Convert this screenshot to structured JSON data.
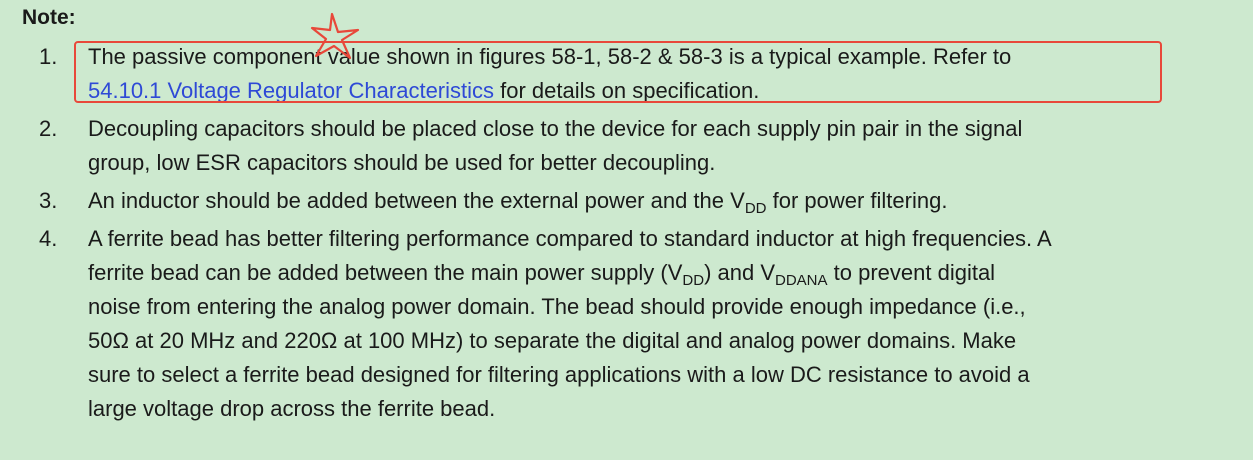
{
  "note": {
    "title": "Note:",
    "items": [
      {
        "number": "1.",
        "lines": [
          {
            "text": "The passive component value shown in figures 58-1, 58-2 & 58-3 is a typical example. Refer to"
          },
          {
            "link": "54.10.1 Voltage Regulator Characteristics",
            "text": " for details on specification."
          }
        ]
      },
      {
        "number": "2.",
        "lines": [
          {
            "text": "Decoupling capacitors should be placed close to the device for each supply pin pair in the signal"
          },
          {
            "text": "group, low ESR capacitors should be used for better decoupling."
          }
        ]
      },
      {
        "number": "3.",
        "lines": [
          {
            "text": "An inductor should be added between the external power and the V",
            "sub": "DD",
            "text_after": " for power filtering."
          }
        ]
      },
      {
        "number": "4.",
        "lines": [
          {
            "text": "A ferrite bead has better filtering performance compared to standard inductor at high frequencies. A"
          },
          {
            "text": "ferrite bead can be added between the main power supply (V",
            "sub": "DD",
            "text_mid": ") and V",
            "sub2": "DDANA",
            "text_after": " to prevent digital"
          },
          {
            "text": "noise from entering the analog power domain. The bead should provide enough impedance (i.e.,"
          },
          {
            "text": "50Ω at 20 MHz and 220Ω at 100 MHz) to separate the digital and analog power domains. Make"
          },
          {
            "text": "sure to select a ferrite bead designed for filtering applications with a low DC resistance to avoid a"
          },
          {
            "text": "large voltage drop across the ferrite bead."
          }
        ]
      }
    ]
  },
  "annotation": {
    "box_color": "#e8483a",
    "mark_icon": "star-icon"
  },
  "colors": {
    "background": "#cde9cf",
    "text": "#1a1a1a",
    "link": "#2e49d6"
  }
}
